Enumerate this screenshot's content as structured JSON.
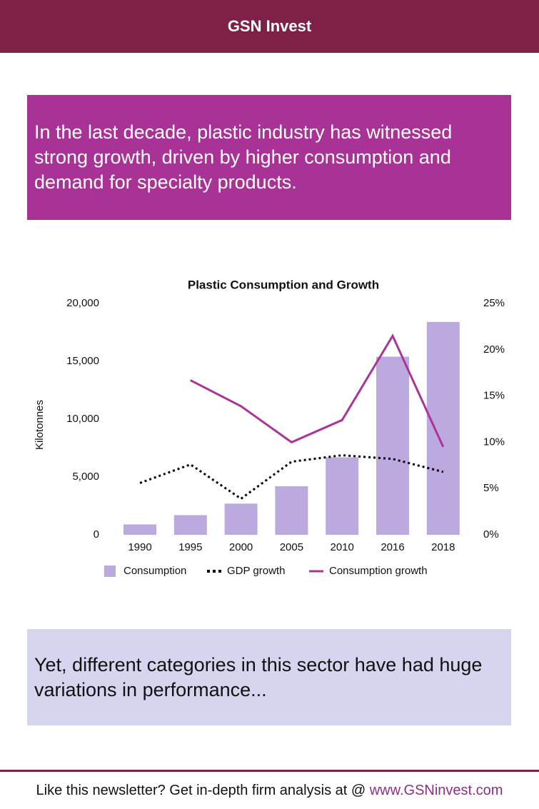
{
  "header": {
    "title": "GSN Invest"
  },
  "intro": "In the last decade, plastic industry has witnessed strong growth, driven by higher consumption and demand for specialty products.",
  "chart_data": {
    "type": "bar",
    "title": "Plastic Consumption and Growth",
    "y_label": "Kilotonnes",
    "categories": [
      "1990",
      "1995",
      "2000",
      "2005",
      "2010",
      "2016",
      "2018"
    ],
    "series": [
      {
        "name": "Consumption",
        "type": "bar",
        "color": "#bba9e0",
        "values": [
          900,
          1700,
          2700,
          4200,
          6700,
          15400,
          18400
        ]
      },
      {
        "name": "GDP growth",
        "type": "line",
        "style": "dotted",
        "axis": "y2",
        "color": "#000000",
        "values": [
          5.6,
          7.6,
          3.9,
          7.9,
          8.6,
          8.2,
          6.8
        ]
      },
      {
        "name": "Consumption growth",
        "type": "line",
        "style": "solid",
        "axis": "y2",
        "color": "#a93598",
        "values": [
          null,
          16.7,
          13.9,
          10.0,
          12.4,
          21.5,
          9.5
        ]
      }
    ],
    "ylim": [
      0,
      20000
    ],
    "yticks": [
      0,
      {
        "value": 5000,
        "label": "5,000"
      },
      {
        "value": 10000,
        "label": "10,000"
      },
      {
        "value": 15000,
        "label": "15,000"
      },
      {
        "value": 20000,
        "label": "20,000"
      }
    ],
    "y2lim": [
      0,
      25
    ],
    "y2ticks": [
      {
        "value": 0,
        "label": "0%"
      },
      {
        "value": 5,
        "label": "5%"
      },
      {
        "value": 10,
        "label": "10%"
      },
      {
        "value": 15,
        "label": "15%"
      },
      {
        "value": 20,
        "label": "20%"
      },
      {
        "value": 25,
        "label": "25%"
      }
    ],
    "grid": false,
    "legend": "bottom"
  },
  "outro": "Yet, different categories in this sector have had huge variations in performance...",
  "footer": {
    "text": "Like this newsletter? Get in-depth firm analysis at @",
    "link": "www.GSNinvest.com"
  }
}
